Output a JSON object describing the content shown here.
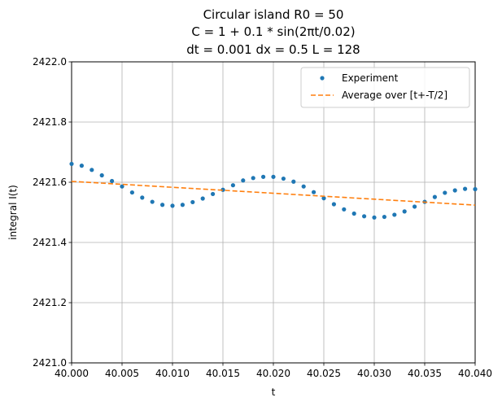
{
  "chart_data": {
    "type": "line",
    "title_lines": [
      "Circular island R0 = 50",
      "C = 1 + 0.1 * sin(2πt/0.02)",
      "dt = 0.001 dx = 0.5 L = 128"
    ],
    "xlabel": "t",
    "ylabel": "integral I(t)",
    "xlim": [
      40.0,
      40.04
    ],
    "ylim": [
      2421.0,
      2422.0
    ],
    "x_ticks": [
      40.0,
      40.005,
      40.01,
      40.015,
      40.02,
      40.025,
      40.03,
      40.035,
      40.04
    ],
    "x_tick_labels": [
      "40.000",
      "40.005",
      "40.010",
      "40.015",
      "40.020",
      "40.025",
      "40.030",
      "40.035",
      "40.040"
    ],
    "y_ticks": [
      2421.0,
      2421.2,
      2421.4,
      2421.6,
      2421.8,
      2422.0
    ],
    "y_tick_labels": [
      "2421.0",
      "2421.2",
      "2421.4",
      "2421.6",
      "2421.8",
      "2422.0"
    ],
    "grid": true,
    "legend_position": "top-right",
    "series": [
      {
        "name": "Experiment",
        "style": "points",
        "color": "#1f77b4",
        "x": [
          40.0,
          40.001,
          40.002,
          40.003,
          40.004,
          40.005,
          40.006,
          40.007,
          40.008,
          40.009,
          40.01,
          40.011,
          40.012,
          40.013,
          40.014,
          40.015,
          40.016,
          40.017,
          40.018,
          40.019,
          40.02,
          40.021,
          40.022,
          40.023,
          40.024,
          40.025,
          40.026,
          40.027,
          40.028,
          40.029,
          40.03,
          40.031,
          40.032,
          40.033,
          40.034,
          40.035,
          40.036,
          40.037,
          40.038,
          40.039,
          40.04
        ],
        "y": [
          2421.661,
          2421.655,
          2421.641,
          2421.623,
          2421.604,
          2421.586,
          2421.566,
          2421.549,
          2421.535,
          2421.525,
          2421.522,
          2421.525,
          2421.534,
          2421.546,
          2421.561,
          2421.575,
          2421.59,
          2421.606,
          2421.614,
          2421.618,
          2421.618,
          2421.612,
          2421.602,
          2421.586,
          2421.567,
          2421.547,
          2421.527,
          2421.51,
          2421.496,
          2421.487,
          2421.483,
          2421.485,
          2421.492,
          2421.503,
          2421.519,
          2421.535,
          2421.551,
          2421.565,
          2421.573,
          2421.578,
          2421.577
        ]
      },
      {
        "name": "Average over [t+-T/2]",
        "style": "dashed",
        "color": "#ff7f0e",
        "x": [
          40.0,
          40.04
        ],
        "y": [
          2421.603,
          2421.524
        ]
      }
    ]
  }
}
